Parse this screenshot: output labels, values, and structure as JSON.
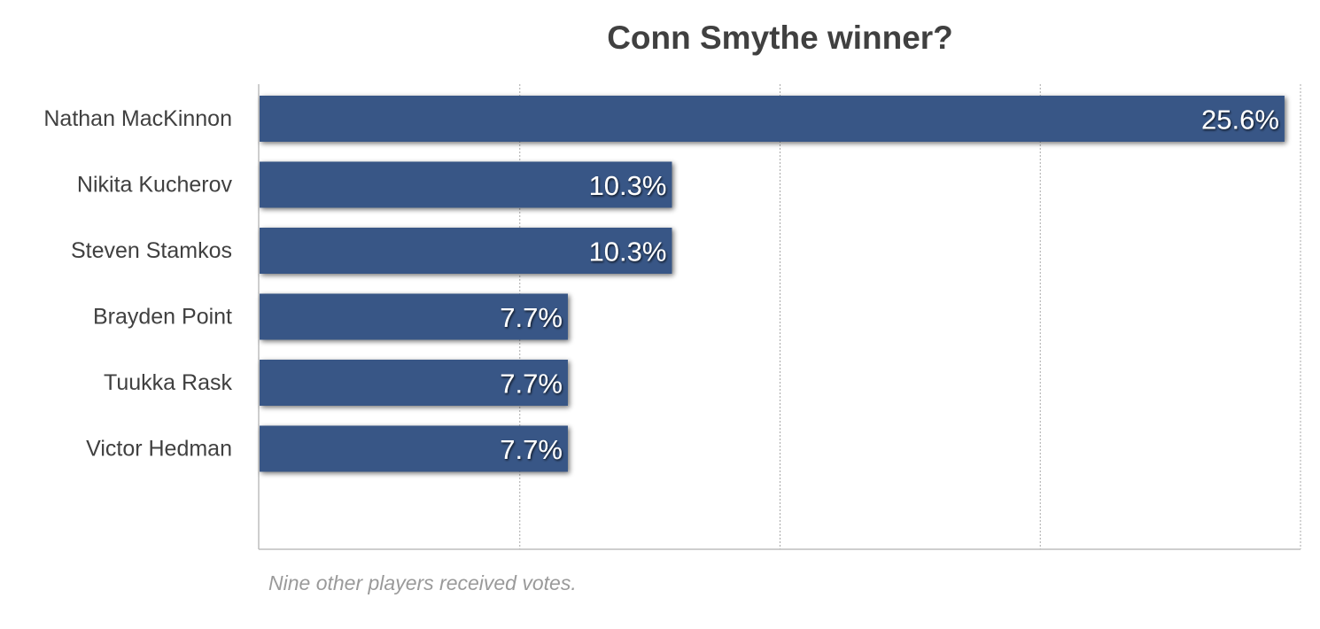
{
  "chart_data": {
    "type": "bar",
    "orientation": "horizontal",
    "title": "Conn Smythe winner?",
    "note": "Nine other players received votes.",
    "categories": [
      "Nathan MacKinnon",
      "Nikita Kucherov",
      "Steven Stamkos",
      "Brayden Point",
      "Tuukka Rask",
      "Victor Hedman"
    ],
    "values": [
      25.6,
      10.3,
      10.3,
      7.7,
      7.7,
      7.7
    ],
    "value_labels": [
      "25.6%",
      "10.3%",
      "10.3%",
      "7.7%",
      "7.7%",
      "7.7%"
    ],
    "xlim": [
      0,
      26
    ],
    "x_gridlines": [
      6.5,
      13,
      19.5,
      26
    ],
    "grid": true,
    "bar_color": "#375786",
    "label_color": "#404040",
    "value_label_color": "#ffffff"
  }
}
